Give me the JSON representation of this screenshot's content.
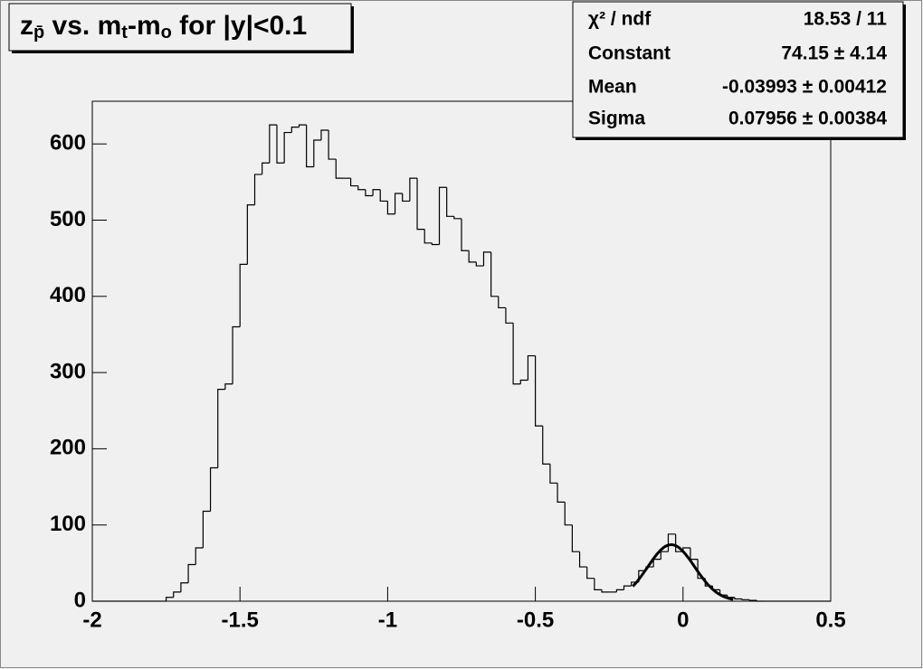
{
  "chart_data": {
    "type": "histogram",
    "title_parts": [
      {
        "text": "z"
      },
      {
        "sub": "p̄"
      },
      {
        "text": " vs. m"
      },
      {
        "sub": "t"
      },
      {
        "text": "-m"
      },
      {
        "sub": "o"
      },
      {
        "text": " for |y|<0.1"
      }
    ],
    "bins": [
      -2,
      -1.975,
      -1.95,
      -1.925,
      -1.9,
      -1.875,
      -1.85,
      -1.825,
      -1.8,
      -1.775,
      -1.75,
      -1.725,
      -1.7,
      -1.675,
      -1.65,
      -1.625,
      -1.6,
      -1.575,
      -1.55,
      -1.525,
      -1.5,
      -1.475,
      -1.45,
      -1.425,
      -1.4,
      -1.375,
      -1.35,
      -1.325,
      -1.3,
      -1.275,
      -1.25,
      -1.225,
      -1.2,
      -1.175,
      -1.15,
      -1.125,
      -1.1,
      -1.075,
      -1.05,
      -1.025,
      -1,
      -0.975,
      -0.95,
      -0.925,
      -0.9,
      -0.875,
      -0.85,
      -0.825,
      -0.8,
      -0.775,
      -0.75,
      -0.725,
      -0.7,
      -0.675,
      -0.65,
      -0.625,
      -0.6,
      -0.575,
      -0.55,
      -0.525,
      -0.5,
      -0.475,
      -0.45,
      -0.425,
      -0.4,
      -0.375,
      -0.35,
      -0.325,
      -0.3,
      -0.275,
      -0.25,
      -0.225,
      -0.2,
      -0.175,
      -0.15,
      -0.125,
      -0.1,
      -0.075,
      -0.05,
      -0.025,
      0,
      0.025,
      0.05,
      0.075,
      0.1,
      0.125,
      0.15,
      0.175,
      0.2,
      0.225,
      0.25,
      0.275,
      0.3,
      0.325,
      0.35,
      0.375,
      0.4,
      0.425,
      0.45,
      0.475,
      0.5
    ],
    "counts": [
      0,
      0,
      0,
      0,
      0,
      0,
      0,
      0,
      0,
      0,
      5,
      12,
      24,
      48,
      70,
      118,
      175,
      278,
      285,
      360,
      442,
      520,
      560,
      575,
      625,
      575,
      615,
      622,
      625,
      570,
      605,
      618,
      580,
      555,
      555,
      545,
      540,
      532,
      540,
      525,
      508,
      535,
      525,
      555,
      488,
      470,
      468,
      543,
      505,
      502,
      460,
      445,
      440,
      458,
      400,
      385,
      365,
      285,
      290,
      322,
      230,
      180,
      155,
      130,
      100,
      65,
      45,
      30,
      15,
      12,
      12,
      15,
      20,
      25,
      40,
      45,
      55,
      65,
      88,
      65,
      70,
      55,
      30,
      20,
      15,
      8,
      5,
      3,
      2,
      1,
      0,
      0,
      0,
      0,
      0,
      0,
      0,
      0,
      0,
      0
    ],
    "color": "#000000",
    "xlim": [
      -2,
      0.5
    ],
    "xticks": [
      -2,
      -1.5,
      -1,
      -0.5,
      0,
      0.5
    ],
    "ylim": [
      0,
      656
    ],
    "yticks": [
      0,
      100,
      200,
      300,
      400,
      500,
      600
    ],
    "fit": {
      "constant": 74.15,
      "mean": -0.03993,
      "sigma": 0.07956,
      "range": [
        -0.17,
        0.17
      ]
    },
    "stats": [
      {
        "label": "χ² / ndf",
        "value": "18.53 / 11"
      },
      {
        "label": "Constant",
        "value": "74.15 ± 4.14"
      },
      {
        "label": "Mean",
        "value": "-0.03993 ± 0.00412"
      },
      {
        "label": "Sigma",
        "value": "0.07956 ± 0.00384"
      }
    ]
  }
}
